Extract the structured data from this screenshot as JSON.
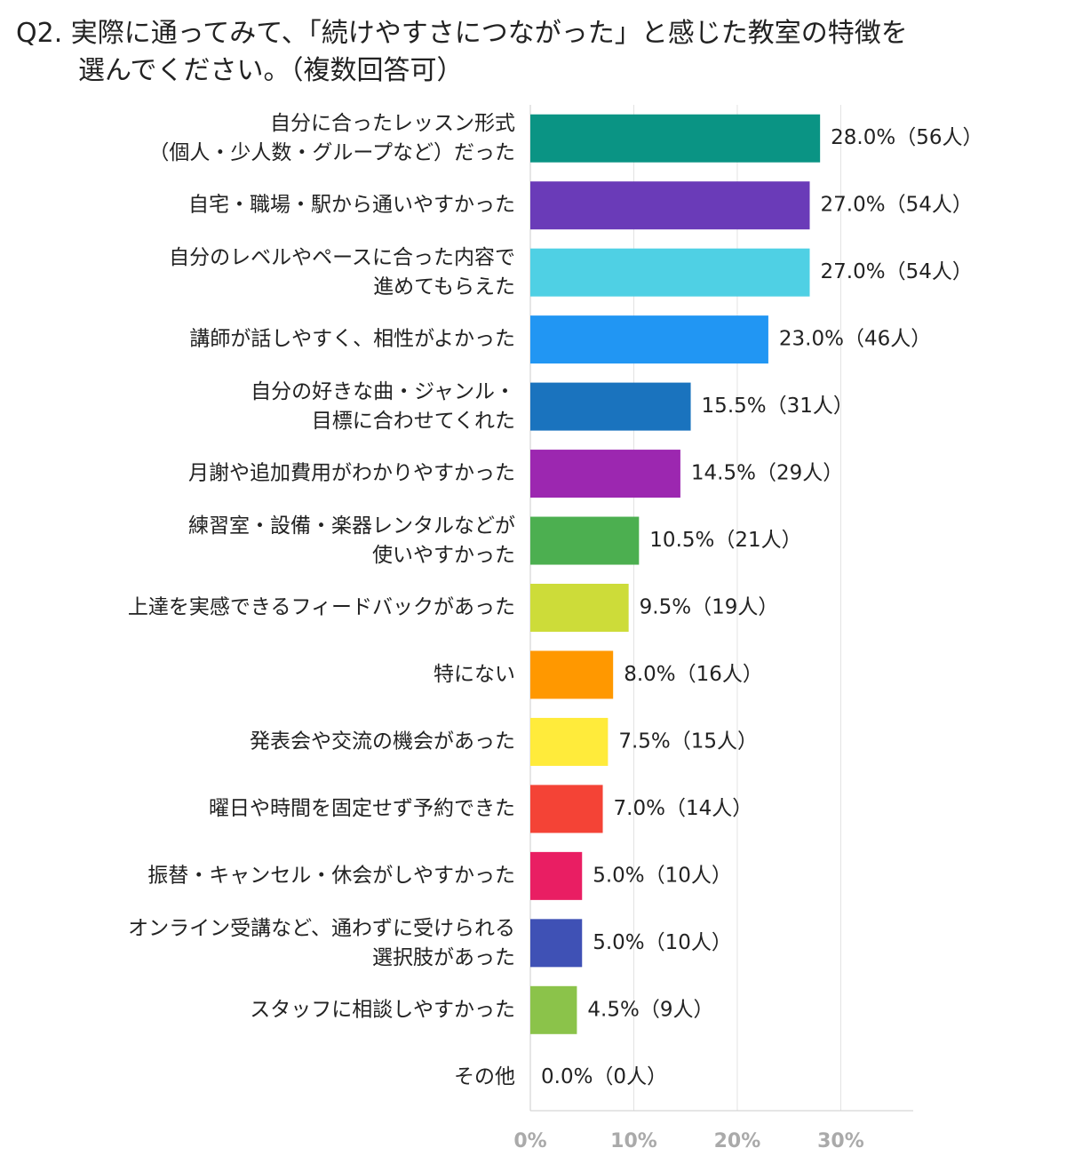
{
  "chart_data": {
    "type": "barh",
    "title": "Q2. 実際に通ってみて、「続けやすさにつながった」と感じた教室の特徴を\n選んでください。（複数回答可）",
    "categories": [
      "自分に合ったレッスン形式\n（個人・少人数・グループなど）だった",
      "自宅・職場・駅から通いやすかった",
      "自分のレベルやペースに合った内容で\n進めてもらえた",
      "講師が話しやすく、相性がよかった",
      "自分の好きな曲・ジャンル・\n目標に合わせてくれた",
      "月謝や追加費用がわかりやすかった",
      "練習室・設備・楽器レンタルなどが\n使いやすかった",
      "上達を実感できるフィードバックがあった",
      "特にない",
      "発表会や交流の機会があった",
      "曜日や時間を固定せず予約できた",
      "振替・キャンセル・休会がしやすかった",
      "オンライン受講など、通わずに受けられる\n選択肢があった",
      "スタッフに相談しやすかった",
      "その他"
    ],
    "values": [
      28.0,
      27.0,
      27.0,
      23.0,
      15.5,
      14.5,
      10.5,
      9.5,
      8.0,
      7.5,
      7.0,
      5.0,
      5.0,
      4.5,
      0.0
    ],
    "value_labels": [
      "28.0%（56人）",
      "27.0%（54人）",
      "27.0%（54人）",
      "23.0%（46人）",
      "15.5%（31人）",
      "14.5%（29人）",
      "10.5%（21人）",
      "9.5%（19人）",
      "8.0%（16人）",
      "7.5%（15人）",
      "7.0%（14人）",
      "5.0%（10人）",
      "5.0%（10人）",
      "4.5%（9人）",
      "0.0%（0人）"
    ],
    "colors": [
      "#0a9484",
      "#6a3bb8",
      "#4fd0e4",
      "#2196f3",
      "#1a73be",
      "#9c27b0",
      "#4caf50",
      "#cddc39",
      "#ff9800",
      "#ffeb3b",
      "#f44336",
      "#e91e63",
      "#3f51b5",
      "#8bc34a",
      "#999999"
    ],
    "xlim": [
      0,
      37
    ],
    "xticks": [
      {
        "value": 0,
        "label": "0%"
      },
      {
        "value": 10,
        "label": "10%"
      },
      {
        "value": 20,
        "label": "20%"
      },
      {
        "value": 30,
        "label": "30%"
      }
    ],
    "grid": true
  }
}
